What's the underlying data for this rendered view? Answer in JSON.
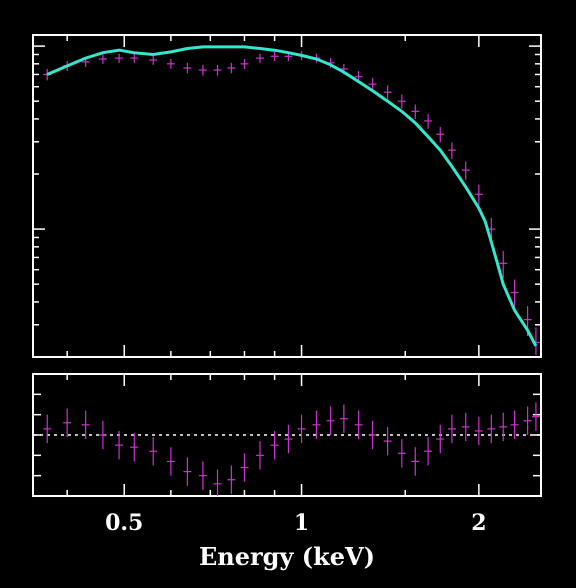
{
  "chart_data": [
    {
      "type": "scatter",
      "panel": "spectrum",
      "x_scale": "log",
      "y_scale": "log",
      "xlim": [
        0.35,
        2.55
      ],
      "x_ticks": [
        0.5,
        1,
        2
      ],
      "x_tick_labels": [
        "0.5",
        "1",
        "2"
      ],
      "xlabel": "Energy (keV)",
      "ylabel": "",
      "grid": false,
      "series": [
        {
          "kind": "data",
          "color": "#cc33cc",
          "x": [
            0.37,
            0.4,
            0.43,
            0.46,
            0.49,
            0.52,
            0.56,
            0.6,
            0.64,
            0.68,
            0.72,
            0.76,
            0.8,
            0.85,
            0.9,
            0.95,
            1.0,
            1.06,
            1.12,
            1.18,
            1.25,
            1.32,
            1.4,
            1.48,
            1.56,
            1.64,
            1.72,
            1.8,
            1.9,
            2.0,
            2.1,
            2.2,
            2.3,
            2.42,
            2.5
          ],
          "y": [
            0.7,
            0.78,
            0.82,
            0.85,
            0.86,
            0.86,
            0.84,
            0.8,
            0.76,
            0.74,
            0.74,
            0.76,
            0.8,
            0.86,
            0.88,
            0.88,
            0.89,
            0.86,
            0.81,
            0.75,
            0.68,
            0.62,
            0.56,
            0.5,
            0.44,
            0.39,
            0.33,
            0.27,
            0.21,
            0.155,
            0.1,
            0.065,
            0.045,
            0.032,
            0.024
          ],
          "yerr": [
            0.05,
            0.05,
            0.05,
            0.05,
            0.05,
            0.05,
            0.05,
            0.05,
            0.05,
            0.05,
            0.05,
            0.05,
            0.05,
            0.05,
            0.05,
            0.05,
            0.05,
            0.05,
            0.05,
            0.05,
            0.05,
            0.05,
            0.05,
            0.045,
            0.04,
            0.036,
            0.032,
            0.028,
            0.024,
            0.02,
            0.015,
            0.011,
            0.008,
            0.006,
            0.005
          ]
        },
        {
          "kind": "model",
          "color": "#33e6cc",
          "x": [
            0.37,
            0.4,
            0.43,
            0.46,
            0.49,
            0.52,
            0.56,
            0.6,
            0.64,
            0.68,
            0.72,
            0.76,
            0.8,
            0.85,
            0.9,
            0.95,
            1.0,
            1.06,
            1.12,
            1.18,
            1.25,
            1.32,
            1.4,
            1.48,
            1.56,
            1.64,
            1.72,
            1.8,
            1.9,
            2.0,
            2.05,
            2.1,
            2.15,
            2.2,
            2.3,
            2.42,
            2.5
          ],
          "y": [
            0.7,
            0.78,
            0.86,
            0.92,
            0.95,
            0.92,
            0.9,
            0.93,
            0.97,
            0.99,
            0.99,
            0.99,
            0.99,
            0.97,
            0.95,
            0.92,
            0.89,
            0.85,
            0.79,
            0.72,
            0.64,
            0.57,
            0.5,
            0.44,
            0.38,
            0.32,
            0.27,
            0.22,
            0.17,
            0.13,
            0.11,
            0.085,
            0.065,
            0.05,
            0.036,
            0.028,
            0.023
          ]
        }
      ]
    },
    {
      "type": "scatter",
      "panel": "residuals",
      "x_scale": "log",
      "xlim": [
        0.35,
        2.55
      ],
      "ylim": [
        -3,
        3
      ],
      "reference_line": 0,
      "series": [
        {
          "kind": "residuals",
          "color": "#cc33cc",
          "x": [
            0.37,
            0.4,
            0.43,
            0.46,
            0.49,
            0.52,
            0.56,
            0.6,
            0.64,
            0.68,
            0.72,
            0.76,
            0.8,
            0.85,
            0.9,
            0.95,
            1.0,
            1.06,
            1.12,
            1.18,
            1.25,
            1.32,
            1.4,
            1.48,
            1.56,
            1.64,
            1.72,
            1.8,
            1.9,
            2.0,
            2.1,
            2.2,
            2.3,
            2.42,
            2.5
          ],
          "y": [
            0.3,
            0.6,
            0.5,
            0.0,
            -0.5,
            -0.6,
            -0.8,
            -1.3,
            -1.8,
            -2.0,
            -2.4,
            -2.2,
            -1.6,
            -1.0,
            -0.5,
            -0.2,
            0.3,
            0.5,
            0.7,
            0.8,
            0.5,
            0.0,
            -0.3,
            -0.9,
            -1.3,
            -0.8,
            -0.2,
            0.3,
            0.4,
            0.2,
            0.3,
            0.4,
            0.5,
            0.7,
            0.9
          ],
          "yerr": [
            0.7,
            0.7,
            0.7,
            0.7,
            0.7,
            0.7,
            0.7,
            0.7,
            0.7,
            0.7,
            0.7,
            0.7,
            0.7,
            0.7,
            0.7,
            0.7,
            0.7,
            0.7,
            0.7,
            0.7,
            0.7,
            0.7,
            0.7,
            0.7,
            0.7,
            0.7,
            0.7,
            0.7,
            0.7,
            0.7,
            0.7,
            0.7,
            0.7,
            0.7,
            0.7
          ]
        }
      ]
    }
  ]
}
